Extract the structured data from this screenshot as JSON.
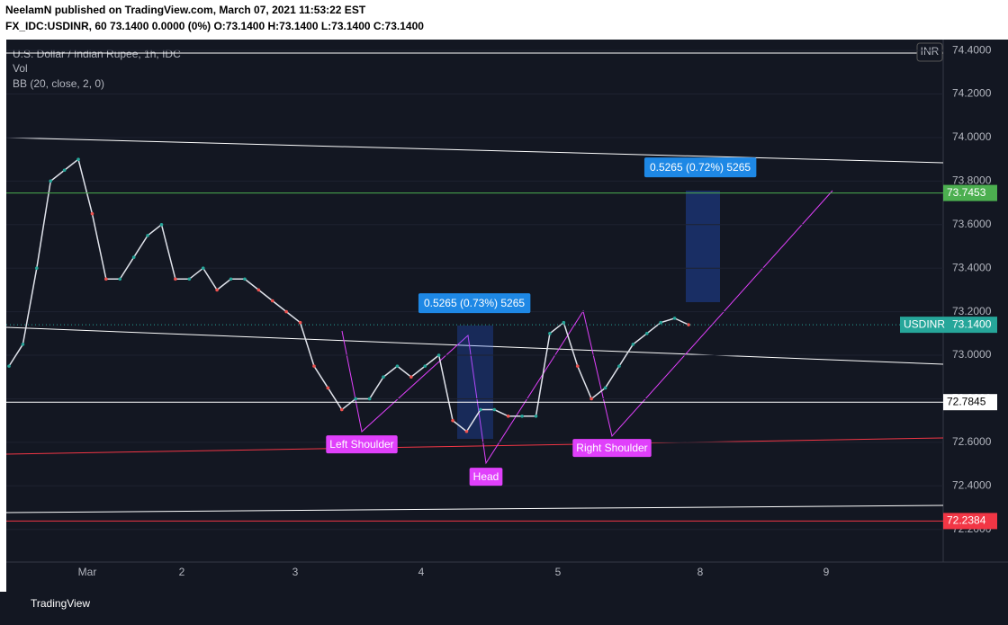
{
  "header": {
    "publisher": "NeelamN published on TradingView.com, March 07, 2021 11:53:22 EST",
    "symbol_line": "FX_IDC:USDINR, 60  73.1400 0.0000 (0%) O:73.1400 H:73.1400 L:73.1400 C:73.1400"
  },
  "legend": [
    "U.S. Dollar / Indian Rupee, 1h, IDC",
    "Vol",
    "BB (20, close, 2, 0)"
  ],
  "currency": "INR",
  "footer": "TradingView",
  "chart_data": {
    "type": "line",
    "color": "#e0e3eb",
    "closes": [
      72.95,
      73.05,
      73.4,
      73.8,
      73.85,
      73.9,
      73.65,
      73.35,
      73.35,
      73.45,
      73.55,
      73.6,
      73.35,
      73.35,
      73.4,
      73.3,
      73.35,
      73.35,
      73.3,
      73.25,
      73.2,
      73.15,
      72.95,
      72.85,
      72.75,
      72.8,
      72.8,
      72.9,
      72.95,
      72.9,
      72.95,
      73.0,
      72.7,
      72.65,
      72.75,
      72.75,
      72.72,
      72.72,
      72.72,
      73.1,
      73.15,
      72.95,
      72.8,
      72.85,
      72.95,
      73.05,
      73.1,
      73.15,
      73.17,
      73.14
    ],
    "ylim": [
      72.05,
      74.45
    ],
    "yticks": [
      {
        "value": 74.4,
        "label": "74.4000"
      },
      {
        "value": 74.2,
        "label": "74.2000"
      },
      {
        "value": 74.0,
        "label": "74.0000"
      },
      {
        "value": 73.8,
        "label": "73.8000"
      },
      {
        "value": 73.6,
        "label": "73.6000"
      },
      {
        "value": 73.4,
        "label": "73.4000"
      },
      {
        "value": 73.2,
        "label": "73.2000"
      },
      {
        "value": 73.0,
        "label": "73.0000"
      },
      {
        "value": 72.8,
        "label": "72.8000"
      },
      {
        "value": 72.6,
        "label": "72.6000"
      },
      {
        "value": 72.4,
        "label": "72.4000"
      },
      {
        "value": 72.2,
        "label": "72.2000"
      }
    ],
    "xlabels": [
      "Mar",
      "2",
      "3",
      "4",
      "5",
      "8",
      "9"
    ],
    "levels": [
      {
        "value": 73.7453,
        "label": "73.7453",
        "color": "#4caf50"
      },
      {
        "value": 72.7845,
        "label": "72.7845",
        "color": "#ffffff"
      },
      {
        "value": 72.2384,
        "label": "72.2384",
        "color": "#f23645"
      }
    ],
    "last": {
      "name": "USDINR",
      "value": 73.14,
      "label": "73.1400",
      "color": "#26a69a"
    },
    "annotations": [
      "Left Shoulder",
      "Head",
      "Right Shoulder"
    ],
    "measures": [
      "0.5265 (0.73%) 5265",
      "0.5265 (0.72%) 5265"
    ]
  }
}
